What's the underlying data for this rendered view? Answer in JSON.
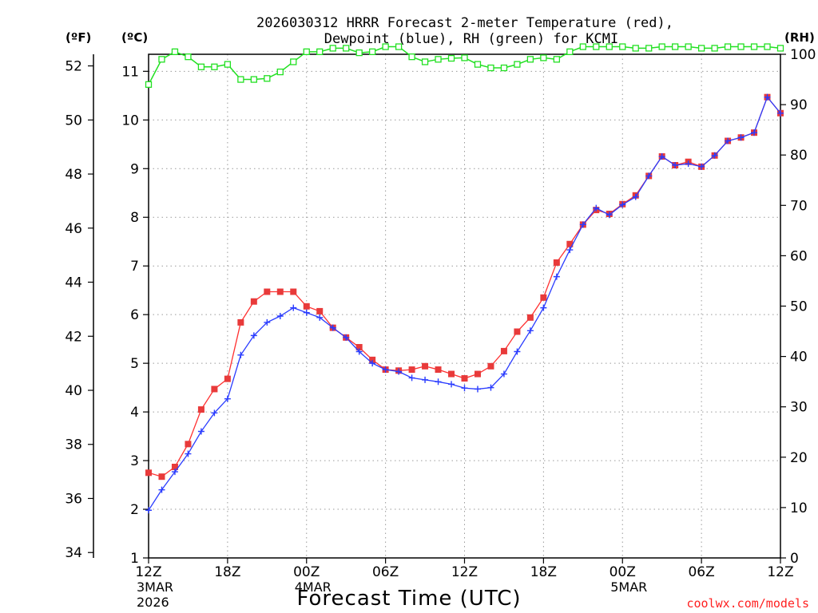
{
  "chart_data": {
    "type": "line",
    "title_line1": "2026030312 HRRR Forecast 2-meter Temperature (red),",
    "title_line2": "Dewpoint (blue), RH (green) for KCMI",
    "axes": {
      "left_outer_label": "(ºF)",
      "left_inner_label": "(ºC)",
      "right_label": "(RH)",
      "fahrenheit_ticks": [
        "34",
        "36",
        "38",
        "40",
        "42",
        "44",
        "46",
        "48",
        "50",
        "52"
      ],
      "celsius_ticks": [
        "1",
        "2",
        "3",
        "4",
        "5",
        "6",
        "7",
        "8",
        "9",
        "10",
        "11"
      ],
      "rh_ticks": [
        "0",
        "10",
        "20",
        "30",
        "40",
        "50",
        "60",
        "70",
        "80",
        "90",
        "100"
      ],
      "celsius_range": [
        1,
        11.35
      ],
      "rh_range": [
        0,
        100
      ],
      "x_range_hours": [
        0,
        48
      ],
      "x_ticks": [
        {
          "hour": 0,
          "label": "12Z",
          "date": "3MAR",
          "year": "2026"
        },
        {
          "hour": 6,
          "label": "18Z"
        },
        {
          "hour": 12,
          "label": "00Z",
          "date": "4MAR"
        },
        {
          "hour": 18,
          "label": "06Z"
        },
        {
          "hour": 24,
          "label": "12Z"
        },
        {
          "hour": 30,
          "label": "18Z"
        },
        {
          "hour": 36,
          "label": "00Z",
          "date": "5MAR"
        },
        {
          "hour": 42,
          "label": "06Z"
        },
        {
          "hour": 48,
          "label": "12Z"
        }
      ]
    },
    "xlabel": "Forecast Time (UTC)",
    "credit": "coolwx.com/models",
    "colors": {
      "temperature": "#ff3030",
      "temperature_marker": "#e83a3a",
      "dewpoint": "#2a3cff",
      "rh": "#22e022",
      "grid": "#9a9a9a",
      "credit": "#ff2020"
    },
    "series": [
      {
        "name": "Temperature",
        "unit": "C",
        "values": [
          2.75,
          2.67,
          2.87,
          3.34,
          4.05,
          4.47,
          4.68,
          5.84,
          6.27,
          6.47,
          6.47,
          6.47,
          6.17,
          6.07,
          5.73,
          5.53,
          5.33,
          5.07,
          4.87,
          4.85,
          4.87,
          4.94,
          4.87,
          4.78,
          4.69,
          4.78,
          4.94,
          5.25,
          5.65,
          5.94,
          6.35,
          7.07,
          7.45,
          7.85,
          8.15,
          8.07,
          8.27,
          8.45,
          8.85,
          9.25,
          9.07,
          9.14,
          9.04,
          9.27,
          9.57,
          9.64,
          9.74,
          10.47,
          10.14
        ]
      },
      {
        "name": "Dewpoint",
        "unit": "C",
        "values": [
          1.98,
          2.4,
          2.77,
          3.14,
          3.6,
          3.98,
          4.27,
          5.17,
          5.57,
          5.84,
          5.97,
          6.14,
          6.04,
          5.94,
          5.73,
          5.53,
          5.24,
          5.0,
          4.87,
          4.83,
          4.7,
          4.66,
          4.62,
          4.57,
          4.49,
          4.47,
          4.5,
          4.78,
          5.24,
          5.67,
          6.14,
          6.78,
          7.33,
          7.85,
          8.19,
          8.05,
          8.26,
          8.42,
          8.85,
          9.25,
          9.07,
          9.1,
          9.04,
          9.27,
          9.57,
          9.64,
          9.74,
          10.47,
          10.14
        ]
      },
      {
        "name": "RH",
        "unit": "%",
        "values": [
          94,
          99,
          100.5,
          99.5,
          97.5,
          97.5,
          98,
          95,
          95,
          95.2,
          96.5,
          98.5,
          100.5,
          100.5,
          101.2,
          101.2,
          100.3,
          100.5,
          101.5,
          101.5,
          99.5,
          98.5,
          99,
          99.2,
          99.3,
          98,
          97.3,
          97.3,
          98,
          99,
          99.3,
          99,
          100.5,
          101.5,
          101.5,
          101.5,
          101.5,
          101.2,
          101.2,
          101.5,
          101.5,
          101.5,
          101.2,
          101.2,
          101.5,
          101.5,
          101.5,
          101.5,
          101.2
        ]
      }
    ]
  }
}
